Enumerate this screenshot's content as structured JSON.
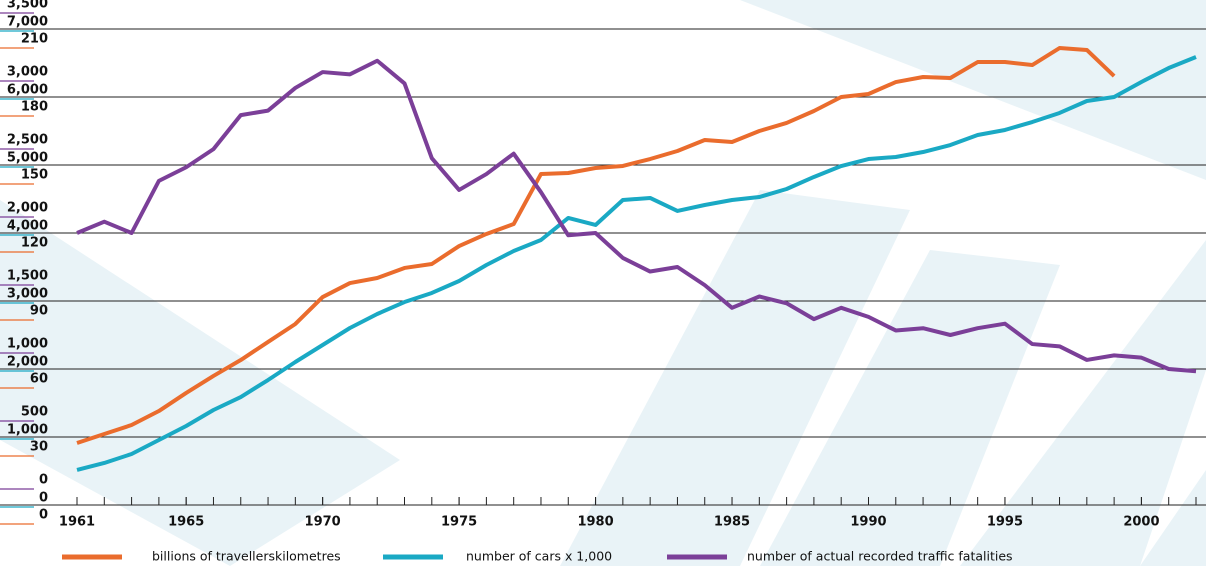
{
  "chart_data": {
    "type": "line",
    "x": [
      1961,
      1962,
      1963,
      1964,
      1965,
      1966,
      1967,
      1968,
      1969,
      1970,
      1971,
      1972,
      1973,
      1974,
      1975,
      1976,
      1977,
      1978,
      1979,
      1980,
      1981,
      1982,
      1983,
      1984,
      1985,
      1986,
      1987,
      1988,
      1989,
      1990,
      1991,
      1992,
      1993,
      1994,
      1995,
      1996,
      1997,
      1998,
      1999,
      2000,
      2001,
      2002
    ],
    "xlim": [
      1961,
      2002
    ],
    "xticks": [
      1961,
      1965,
      1970,
      1975,
      1980,
      1985,
      1990,
      1995,
      2000
    ],
    "ylim": [
      0,
      3500
    ],
    "yticks": [
      0,
      500,
      {
        "value": 1000,
        "label": "1,000"
      },
      {
        "value": 1500,
        "label": "1,500"
      },
      {
        "value": 2000,
        "label": "2,000"
      },
      {
        "value": 2500,
        "label": "2,500"
      },
      {
        "value": 3000,
        "label": "3,000"
      },
      {
        "value": 3500,
        "label": "3,500"
      }
    ],
    "ytick_color": "#7b3f98",
    "y2lim": [
      0,
      7000
    ],
    "y2ticks": [
      0,
      {
        "value": 1000,
        "label": "1,000"
      },
      {
        "value": 2000,
        "label": "2,000"
      },
      {
        "value": 3000,
        "label": "3,000"
      },
      {
        "value": 4000,
        "label": "4,000"
      },
      {
        "value": 5000,
        "label": "5,000"
      },
      {
        "value": 6000,
        "label": "6,000"
      },
      {
        "value": 7000,
        "label": "7,000"
      }
    ],
    "y2tick_color": "#1aa9c4",
    "y3lim": [
      0,
      210
    ],
    "y3ticks": [
      0,
      30,
      60,
      90,
      120,
      150,
      180,
      210
    ],
    "y3tick_color": "#ea6c2d",
    "grid": true,
    "series": [
      {
        "name": "billions of travellerskilometres",
        "color": "#ea6c2d",
        "axis": "y",
        "values": [
          456,
          522,
          588,
          691,
          824,
          949,
          1066,
          1199,
          1331,
          1529,
          1632,
          1669,
          1743,
          1772,
          1904,
          1993,
          2066,
          2434,
          2441,
          2478,
          2493,
          2544,
          2603,
          2684,
          2669,
          2750,
          2809,
          2897,
          3000,
          3022,
          3110,
          3147,
          3140,
          3257,
          3257,
          3235,
          3360,
          3346,
          3154,
          null,
          null,
          null
        ]
      },
      {
        "name": "number of cars x 1,000",
        "color": "#1aa9c4",
        "axis": "y2",
        "values": [
          515,
          618,
          750,
          956,
          1162,
          1397,
          1588,
          1838,
          2103,
          2353,
          2603,
          2809,
          2985,
          3118,
          3294,
          3529,
          3735,
          3897,
          4221,
          4118,
          4485,
          4515,
          4324,
          4412,
          4485,
          4529,
          4647,
          4824,
          4985,
          5088,
          5118,
          5191,
          5294,
          5441,
          5515,
          5632,
          5765,
          5941,
          6000,
          6221,
          6426,
          6588
        ]
      },
      {
        "name": "number of actual recorded traffic fatalities",
        "color": "#7b3f98",
        "axis": "y3",
        "values": [
          120,
          125,
          120,
          143,
          149,
          157,
          172,
          174,
          184,
          191,
          190,
          196,
          186,
          153,
          139,
          146,
          155,
          138,
          119,
          120,
          109,
          103,
          105,
          97,
          87,
          92,
          89,
          82,
          87,
          83,
          77,
          78,
          75,
          78,
          80,
          71,
          70,
          64,
          66,
          65,
          60,
          59
        ]
      }
    ]
  }
}
